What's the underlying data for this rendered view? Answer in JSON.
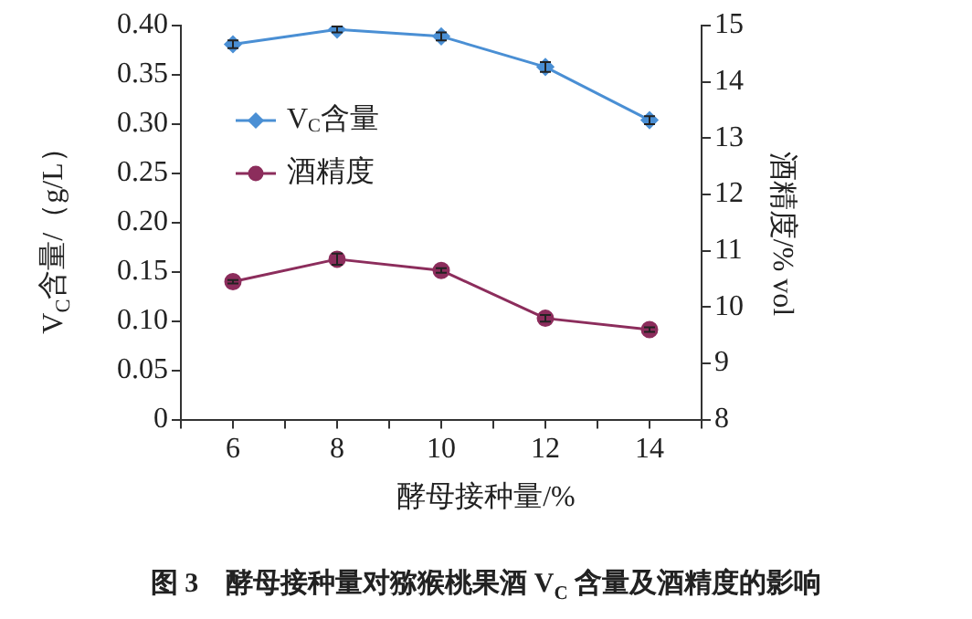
{
  "chart_data": {
    "type": "line",
    "title": "图 3　酵母接种量对猕猴桃果酒 V$_{C}$ 含量及酒精度的影响",
    "xlabel": "酵母接种量/%",
    "ylabel": "V$_{C}$含量/（g/L）",
    "y2label": "酒精度/% vol",
    "x": [
      6,
      8,
      10,
      12,
      14
    ],
    "xlim": [
      5,
      15
    ],
    "xticks": [
      {
        "value": 5,
        "label": null
      },
      6,
      {
        "value": 7,
        "label": null
      },
      8,
      {
        "value": 9,
        "label": null
      },
      10,
      {
        "value": 11,
        "label": null
      },
      12,
      {
        "value": 13,
        "label": null
      },
      14,
      {
        "value": 15,
        "label": null
      }
    ],
    "ylim": [
      0,
      0.4
    ],
    "yticks": [
      0,
      0.05,
      {
        "value": 0.1,
        "label": "0.10"
      },
      0.15,
      {
        "value": 0.2,
        "label": "0.20"
      },
      0.25,
      {
        "value": 0.3,
        "label": "0.30"
      },
      0.35,
      {
        "value": 0.4,
        "label": "0.40"
      }
    ],
    "y2lim": [
      8,
      15
    ],
    "y2ticks": [
      8,
      9,
      10,
      11,
      12,
      13,
      14,
      15
    ],
    "series": [
      {
        "name": "V$_{C}$含量",
        "color": "#4a8fd4",
        "marker": "diamond",
        "values": [
          0.381,
          0.396,
          0.389,
          0.358,
          0.304
        ],
        "errors": [
          0.004,
          0.003,
          0.004,
          0.005,
          0.004
        ]
      },
      {
        "name": "酒精度",
        "color": "#8c2d5c",
        "marker": "circle",
        "axis": "y2",
        "values": [
          10.45,
          10.85,
          10.65,
          9.8,
          9.6
        ],
        "errors": [
          0.03,
          0.1,
          0.04,
          0.06,
          0.04
        ]
      }
    ],
    "legend": "top left",
    "grid": false,
    "line_style": "solid"
  }
}
